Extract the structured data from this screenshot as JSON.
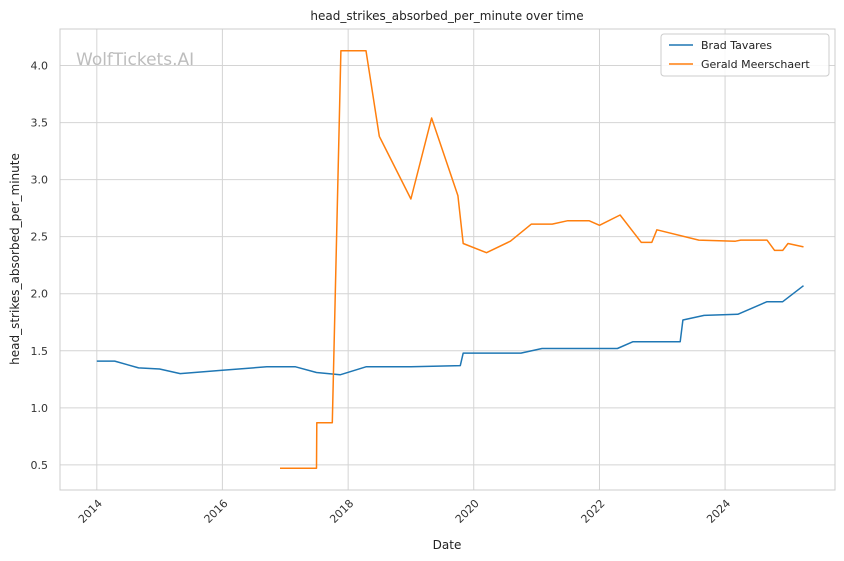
{
  "chart_data": {
    "type": "line",
    "title": "head_strikes_absorbed_per_minute over time",
    "xlabel": "Date",
    "ylabel": "head_strikes_absorbed_per_minute",
    "watermark": "WolfTickets.AI",
    "xlim": [
      "2013-06-01",
      "2025-10-01"
    ],
    "ylim": [
      0.28,
      4.32
    ],
    "x_ticks": [
      {
        "date": "2014-01-01",
        "label": "2014"
      },
      {
        "date": "2016-01-01",
        "label": "2016"
      },
      {
        "date": "2018-01-01",
        "label": "2018"
      },
      {
        "date": "2020-01-01",
        "label": "2020"
      },
      {
        "date": "2022-01-01",
        "label": "2022"
      },
      {
        "date": "2024-01-01",
        "label": "2024"
      }
    ],
    "y_ticks": [
      {
        "value": 0.5,
        "label": "0.5"
      },
      {
        "value": 1.0,
        "label": "1.0"
      },
      {
        "value": 1.5,
        "label": "1.5"
      },
      {
        "value": 2.0,
        "label": "2.0"
      },
      {
        "value": 2.5,
        "label": "2.5"
      },
      {
        "value": 3.0,
        "label": "3.0"
      },
      {
        "value": 3.5,
        "label": "3.5"
      },
      {
        "value": 4.0,
        "label": "4.0"
      }
    ],
    "grid": true,
    "legend_position": "top-right",
    "series": [
      {
        "name": "Brad Tavares",
        "color": "#1f77b4",
        "points": [
          [
            "2014-01-01",
            1.41
          ],
          [
            "2014-04-15",
            1.41
          ],
          [
            "2014-09-01",
            1.35
          ],
          [
            "2015-01-01",
            1.34
          ],
          [
            "2015-05-01",
            1.3
          ],
          [
            "2016-01-01",
            1.33
          ],
          [
            "2016-09-15",
            1.36
          ],
          [
            "2017-03-01",
            1.36
          ],
          [
            "2017-07-01",
            1.31
          ],
          [
            "2017-11-15",
            1.29
          ],
          [
            "2018-04-15",
            1.36
          ],
          [
            "2019-01-01",
            1.36
          ],
          [
            "2019-10-15",
            1.37
          ],
          [
            "2019-11-01",
            1.48
          ],
          [
            "2020-10-01",
            1.48
          ],
          [
            "2021-02-01",
            1.52
          ],
          [
            "2021-07-15",
            1.52
          ],
          [
            "2022-04-15",
            1.52
          ],
          [
            "2022-07-15",
            1.58
          ],
          [
            "2023-04-15",
            1.58
          ],
          [
            "2023-05-01",
            1.77
          ],
          [
            "2023-09-01",
            1.81
          ],
          [
            "2024-03-15",
            1.82
          ],
          [
            "2024-09-01",
            1.93
          ],
          [
            "2024-12-01",
            1.93
          ],
          [
            "2025-04-01",
            2.07
          ]
        ]
      },
      {
        "name": "Gerald Meerschaert",
        "color": "#ff7f0e",
        "points": [
          [
            "2016-12-01",
            0.47
          ],
          [
            "2017-07-01",
            0.47
          ],
          [
            "2017-07-03",
            0.87
          ],
          [
            "2017-10-01",
            0.87
          ],
          [
            "2017-11-20",
            4.13
          ],
          [
            "2018-04-15",
            4.13
          ],
          [
            "2018-07-01",
            3.38
          ],
          [
            "2019-01-01",
            2.83
          ],
          [
            "2019-05-01",
            3.54
          ],
          [
            "2019-10-01",
            2.86
          ],
          [
            "2019-11-01",
            2.44
          ],
          [
            "2020-03-15",
            2.36
          ],
          [
            "2020-08-01",
            2.46
          ],
          [
            "2020-12-01",
            2.61
          ],
          [
            "2021-04-01",
            2.61
          ],
          [
            "2021-07-01",
            2.64
          ],
          [
            "2021-11-01",
            2.64
          ],
          [
            "2022-01-01",
            2.6
          ],
          [
            "2022-05-01",
            2.69
          ],
          [
            "2022-09-01",
            2.45
          ],
          [
            "2022-11-01",
            2.45
          ],
          [
            "2022-12-01",
            2.56
          ],
          [
            "2023-08-01",
            2.47
          ],
          [
            "2024-03-01",
            2.46
          ],
          [
            "2024-04-01",
            2.47
          ],
          [
            "2024-09-01",
            2.47
          ],
          [
            "2024-10-15",
            2.38
          ],
          [
            "2024-12-01",
            2.38
          ],
          [
            "2025-01-01",
            2.44
          ],
          [
            "2025-04-01",
            2.41
          ]
        ]
      }
    ]
  }
}
